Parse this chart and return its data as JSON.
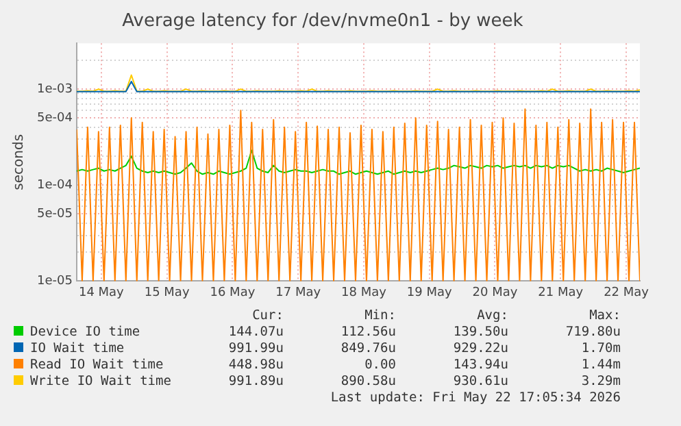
{
  "chart_data": {
    "type": "line",
    "title": "Average latency for /dev/nvme0n1 - by week",
    "ylabel": "seconds",
    "log": "y",
    "grid": true,
    "legend": "bottom",
    "marker": "none",
    "line_style": "solid",
    "xlim": [
      "2026-05-13T15:00",
      "2026-05-22T05:00"
    ],
    "xticks": [
      {
        "value": "2026-05-14T00:00",
        "label": "14 May"
      },
      {
        "value": "2026-05-15T00:00",
        "label": "15 May"
      },
      {
        "value": "2026-05-16T00:00",
        "label": "16 May"
      },
      {
        "value": "2026-05-17T00:00",
        "label": "17 May"
      },
      {
        "value": "2026-05-18T00:00",
        "label": "18 May"
      },
      {
        "value": "2026-05-19T00:00",
        "label": "19 May"
      },
      {
        "value": "2026-05-20T00:00",
        "label": "20 May"
      },
      {
        "value": "2026-05-21T00:00",
        "label": "21 May"
      },
      {
        "value": "2026-05-22T00:00",
        "label": "22 May"
      }
    ],
    "ylim": [
      1e-05,
      0.003
    ],
    "yticks": [
      {
        "value": 1e-05,
        "label": "1e-05"
      },
      {
        "value": 2e-05,
        "label": null
      },
      {
        "value": 3e-05,
        "label": null
      },
      {
        "value": 4e-05,
        "label": null
      },
      {
        "value": 5e-05,
        "label": "5e-05"
      },
      {
        "value": 6e-05,
        "label": null
      },
      {
        "value": 7e-05,
        "label": null
      },
      {
        "value": 8e-05,
        "label": null
      },
      {
        "value": 9e-05,
        "label": null
      },
      {
        "value": 0.0001,
        "label": "1e-04"
      },
      {
        "value": 0.0002,
        "label": null
      },
      {
        "value": 0.0003,
        "label": null
      },
      {
        "value": 0.0004,
        "label": null
      },
      {
        "value": 0.0005,
        "label": "5e-04"
      },
      {
        "value": 0.0006,
        "label": null
      },
      {
        "value": 0.0007,
        "label": null
      },
      {
        "value": 0.0008,
        "label": null
      },
      {
        "value": 0.0009,
        "label": null
      },
      {
        "value": 0.001,
        "label": "1e-03"
      },
      {
        "value": 0.002,
        "label": null
      }
    ],
    "x": [
      "2026-05-13T15:00",
      "2026-05-13T17:00",
      "2026-05-13T19:00",
      "2026-05-13T21:00",
      "2026-05-13T23:00",
      "2026-05-14T01:00",
      "2026-05-14T03:00",
      "2026-05-14T05:00",
      "2026-05-14T07:00",
      "2026-05-14T09:00",
      "2026-05-14T11:00",
      "2026-05-14T13:00",
      "2026-05-14T15:00",
      "2026-05-14T17:00",
      "2026-05-14T19:00",
      "2026-05-14T21:00",
      "2026-05-14T23:00",
      "2026-05-15T01:00",
      "2026-05-15T03:00",
      "2026-05-15T05:00",
      "2026-05-15T07:00",
      "2026-05-15T09:00",
      "2026-05-15T11:00",
      "2026-05-15T13:00",
      "2026-05-15T15:00",
      "2026-05-15T17:00",
      "2026-05-15T19:00",
      "2026-05-15T21:00",
      "2026-05-15T23:00",
      "2026-05-16T01:00",
      "2026-05-16T03:00",
      "2026-05-16T05:00",
      "2026-05-16T07:00",
      "2026-05-16T09:00",
      "2026-05-16T11:00",
      "2026-05-16T13:00",
      "2026-05-16T15:00",
      "2026-05-16T17:00",
      "2026-05-16T19:00",
      "2026-05-16T21:00",
      "2026-05-16T23:00",
      "2026-05-17T01:00",
      "2026-05-17T03:00",
      "2026-05-17T05:00",
      "2026-05-17T07:00",
      "2026-05-17T09:00",
      "2026-05-17T11:00",
      "2026-05-17T13:00",
      "2026-05-17T15:00",
      "2026-05-17T17:00",
      "2026-05-17T19:00",
      "2026-05-17T21:00",
      "2026-05-17T23:00",
      "2026-05-18T01:00",
      "2026-05-18T03:00",
      "2026-05-18T05:00",
      "2026-05-18T07:00",
      "2026-05-18T09:00",
      "2026-05-18T11:00",
      "2026-05-18T13:00",
      "2026-05-18T15:00",
      "2026-05-18T17:00",
      "2026-05-18T19:00",
      "2026-05-18T21:00",
      "2026-05-18T23:00",
      "2026-05-19T01:00",
      "2026-05-19T03:00",
      "2026-05-19T05:00",
      "2026-05-19T07:00",
      "2026-05-19T09:00",
      "2026-05-19T11:00",
      "2026-05-19T13:00",
      "2026-05-19T15:00",
      "2026-05-19T17:00",
      "2026-05-19T19:00",
      "2026-05-19T21:00",
      "2026-05-19T23:00",
      "2026-05-20T01:00",
      "2026-05-20T03:00",
      "2026-05-20T05:00",
      "2026-05-20T07:00",
      "2026-05-20T09:00",
      "2026-05-20T11:00",
      "2026-05-20T13:00",
      "2026-05-20T15:00",
      "2026-05-20T17:00",
      "2026-05-20T19:00",
      "2026-05-20T21:00",
      "2026-05-20T23:00",
      "2026-05-21T01:00",
      "2026-05-21T03:00",
      "2026-05-21T05:00",
      "2026-05-21T07:00",
      "2026-05-21T09:00",
      "2026-05-21T11:00",
      "2026-05-21T13:00",
      "2026-05-21T15:00",
      "2026-05-21T17:00",
      "2026-05-21T19:00",
      "2026-05-21T21:00",
      "2026-05-21T23:00",
      "2026-05-22T01:00",
      "2026-05-22T03:00",
      "2026-05-22T05:00"
    ],
    "series": [
      {
        "name": "Read IO Wait time",
        "color": "#ff8000",
        "values": [
          0.00038,
          1e-05,
          0.0004,
          1e-05,
          0.00036,
          1e-05,
          0.0004,
          1e-05,
          0.00042,
          1e-05,
          0.0005,
          1e-05,
          0.00045,
          1e-05,
          0.00036,
          1e-05,
          0.00038,
          1e-05,
          0.00032,
          1e-05,
          0.00036,
          1e-05,
          0.0004,
          1e-05,
          0.00034,
          1e-05,
          0.00038,
          1e-05,
          0.00042,
          1e-05,
          0.0006,
          1e-05,
          0.00045,
          1e-05,
          0.00038,
          1e-05,
          0.00048,
          1e-05,
          0.0004,
          1e-05,
          0.00036,
          1e-05,
          0.00045,
          1e-05,
          0.00041,
          1e-05,
          0.00038,
          1e-05,
          0.0004,
          1e-05,
          0.00035,
          1e-05,
          0.00042,
          1e-05,
          0.00038,
          1e-05,
          0.00036,
          1e-05,
          0.0004,
          1e-05,
          0.00044,
          1e-05,
          0.0005,
          1e-05,
          0.00042,
          1e-05,
          0.00046,
          1e-05,
          0.00038,
          1e-05,
          0.0004,
          1e-05,
          0.00048,
          1e-05,
          0.00042,
          1e-05,
          0.00045,
          1e-05,
          0.0005,
          1e-05,
          0.00044,
          1e-05,
          0.00062,
          1e-05,
          0.00042,
          1e-05,
          0.00045,
          1e-05,
          0.0004,
          1e-05,
          0.00048,
          1e-05,
          0.00044,
          1e-05,
          0.00062,
          1e-05,
          0.00045,
          1e-05,
          0.00048,
          1e-05,
          0.00045,
          1e-05,
          0.00045,
          1e-05
        ]
      },
      {
        "name": "Device IO time",
        "color": "#00cc00",
        "values": [
          0.00014,
          0.000145,
          0.00014,
          0.000145,
          0.00015,
          0.00014,
          0.000145,
          0.00014,
          0.00015,
          0.00016,
          0.0002,
          0.00015,
          0.00014,
          0.000135,
          0.00014,
          0.000135,
          0.00014,
          0.000135,
          0.00013,
          0.000135,
          0.00015,
          0.00017,
          0.00014,
          0.00013,
          0.000135,
          0.00013,
          0.00014,
          0.000135,
          0.00013,
          0.000135,
          0.00014,
          0.00015,
          0.00023,
          0.00015,
          0.00014,
          0.000135,
          0.00016,
          0.00014,
          0.000135,
          0.00014,
          0.000145,
          0.00014,
          0.00014,
          0.000135,
          0.00014,
          0.000145,
          0.00014,
          0.00014,
          0.00013,
          0.000135,
          0.00014,
          0.00013,
          0.000135,
          0.00014,
          0.000135,
          0.00013,
          0.000135,
          0.00014,
          0.00013,
          0.000135,
          0.00014,
          0.000135,
          0.00014,
          0.000135,
          0.00014,
          0.000145,
          0.00015,
          0.000145,
          0.00015,
          0.00016,
          0.000155,
          0.00015,
          0.00016,
          0.000155,
          0.00015,
          0.00016,
          0.000155,
          0.00016,
          0.00015,
          0.000155,
          0.00016,
          0.000155,
          0.00016,
          0.00015,
          0.00016,
          0.000155,
          0.00016,
          0.00015,
          0.00016,
          0.000155,
          0.00016,
          0.00015,
          0.00014,
          0.000145,
          0.00014,
          0.000145,
          0.00014,
          0.00015,
          0.000145,
          0.00014,
          0.000135,
          0.00014,
          0.000145,
          0.00015
        ]
      },
      {
        "name": "IO Wait time",
        "color": "#0066b3",
        "values": [
          0.00094,
          0.00094,
          0.00094,
          0.00094,
          0.00094,
          0.00094,
          0.00094,
          0.00094,
          0.00094,
          0.00094,
          0.0012,
          0.00094,
          0.00094,
          0.00094,
          0.00094,
          0.00094,
          0.00094,
          0.00094,
          0.00094,
          0.00094,
          0.00094,
          0.00094,
          0.00094,
          0.00094,
          0.00094,
          0.00094,
          0.00094,
          0.00094,
          0.00094,
          0.00094,
          0.00094,
          0.00094,
          0.00094,
          0.00094,
          0.00094,
          0.00094,
          0.00094,
          0.00094,
          0.00094,
          0.00094,
          0.00094,
          0.00094,
          0.00094,
          0.00094,
          0.00094,
          0.00094,
          0.00094,
          0.00094,
          0.00094,
          0.00094,
          0.00094,
          0.00094,
          0.00094,
          0.00094,
          0.00094,
          0.00094,
          0.00094,
          0.00094,
          0.00094,
          0.00094,
          0.00094,
          0.00094,
          0.00094,
          0.00094,
          0.00094,
          0.00094,
          0.00094,
          0.00094,
          0.00094,
          0.00094,
          0.00094,
          0.00094,
          0.00094,
          0.00094,
          0.00094,
          0.00094,
          0.00094,
          0.00094,
          0.00094,
          0.00094,
          0.00094,
          0.00094,
          0.00094,
          0.00094,
          0.00094,
          0.00094,
          0.00094,
          0.00094,
          0.00094,
          0.00094,
          0.00094,
          0.00094,
          0.00094,
          0.00094,
          0.00094,
          0.00094,
          0.00094,
          0.00094,
          0.00094,
          0.00094,
          0.00094,
          0.00094,
          0.00094,
          0.00094
        ]
      },
      {
        "name": "Write IO Wait time",
        "color": "#ffcc00",
        "values": [
          0.00095,
          0.00095,
          0.00096,
          0.00095,
          0.001,
          0.00095,
          0.00095,
          0.00096,
          0.00095,
          0.00095,
          0.0014,
          0.00095,
          0.00095,
          0.001,
          0.00095,
          0.00095,
          0.00096,
          0.00095,
          0.00095,
          0.00095,
          0.001,
          0.00095,
          0.00095,
          0.00096,
          0.00095,
          0.00095,
          0.00095,
          0.00096,
          0.00095,
          0.00095,
          0.001,
          0.00095,
          0.00095,
          0.00096,
          0.00095,
          0.00095,
          0.00095,
          0.00096,
          0.00095,
          0.00095,
          0.00095,
          0.00096,
          0.00095,
          0.001,
          0.00095,
          0.00095,
          0.00096,
          0.00095,
          0.00095,
          0.00095,
          0.00096,
          0.00095,
          0.00095,
          0.00095,
          0.00096,
          0.00095,
          0.00095,
          0.00095,
          0.00096,
          0.00095,
          0.00095,
          0.00095,
          0.00096,
          0.00095,
          0.00095,
          0.00095,
          0.001,
          0.00095,
          0.00095,
          0.00096,
          0.00095,
          0.00095,
          0.00095,
          0.00096,
          0.00095,
          0.00095,
          0.00095,
          0.00096,
          0.00095,
          0.00095,
          0.00095,
          0.00096,
          0.00095,
          0.00095,
          0.00095,
          0.00096,
          0.00095,
          0.001,
          0.00095,
          0.00095,
          0.00096,
          0.00095,
          0.00095,
          0.00095,
          0.001,
          0.00095,
          0.00095,
          0.00096,
          0.00095,
          0.00095,
          0.00095,
          0.00096,
          0.00095,
          0.00098
        ]
      }
    ],
    "annotations": [
      "Cur:",
      "Min:",
      "Avg:",
      "Max:",
      "448.98u",
      "0.00",
      "143.94u",
      "1.44m",
      "144.07u",
      "112.56u",
      "139.50u",
      "719.80u",
      "991.99u",
      "849.76u",
      "929.22u",
      "1.70m",
      "991.89u",
      "890.58u",
      "930.61u",
      "3.29m",
      "Last update: Fri May 22 17:05:34 2026"
    ]
  }
}
